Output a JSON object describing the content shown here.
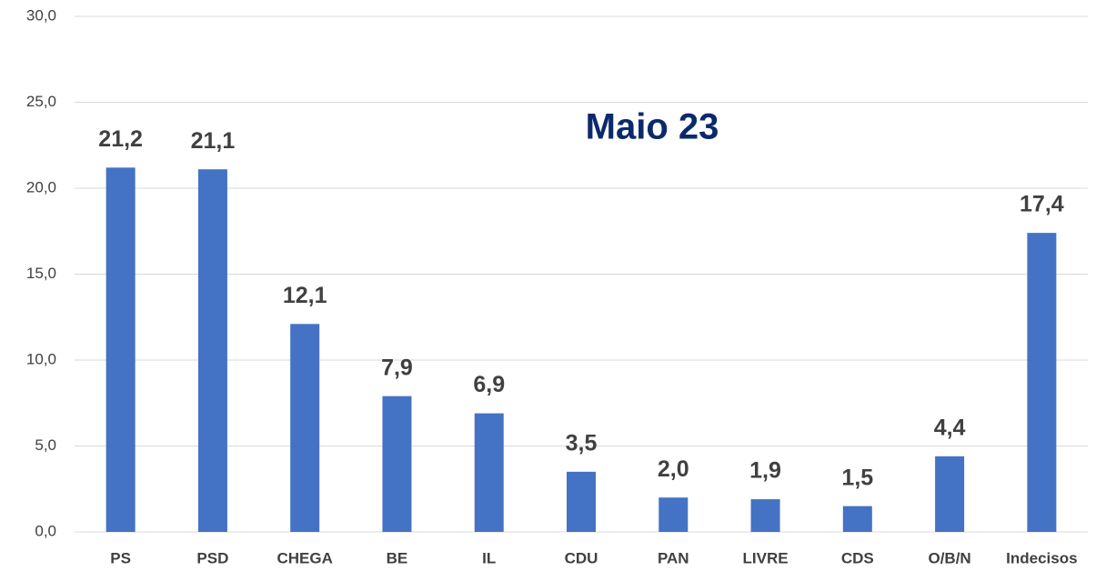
{
  "chart_data": {
    "type": "bar",
    "title": "Maio 23",
    "categories": [
      "PS",
      "PSD",
      "CHEGA",
      "BE",
      "IL",
      "CDU",
      "PAN",
      "LIVRE",
      "CDS",
      "O/B/N",
      "Indecisos"
    ],
    "values": [
      21.2,
      21.1,
      12.1,
      7.9,
      6.9,
      3.5,
      2.0,
      1.9,
      1.5,
      4.4,
      17.4
    ],
    "value_labels": [
      "21,2",
      "21,1",
      "12,1",
      "7,9",
      "6,9",
      "3,5",
      "2,0",
      "1,9",
      "1,5",
      "4,4",
      "17,4"
    ],
    "color": "#4472c4",
    "ylim": [
      0,
      30
    ],
    "yticks": [
      {
        "value": 0,
        "label": "0,0"
      },
      {
        "value": 5,
        "label": "5,0"
      },
      {
        "value": 10,
        "label": "10,0"
      },
      {
        "value": 15,
        "label": "15,0"
      },
      {
        "value": 20,
        "label": "20,0"
      },
      {
        "value": 25,
        "label": "25,0"
      },
      {
        "value": 30,
        "label": "30,0"
      }
    ],
    "grid": true
  }
}
